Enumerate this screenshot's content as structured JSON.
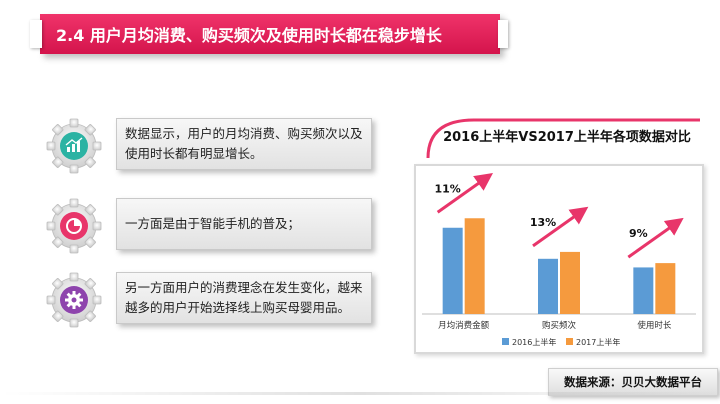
{
  "header": {
    "title": "2.4 用户月均消费、购买频次及使用时长都在稳步增长"
  },
  "points": [
    {
      "text": "数据显示，用户的月均消费、购买频次以及使用时长都有明显增长。",
      "icon": "bar-chart-icon",
      "color": "#2bb3a3"
    },
    {
      "text": "一方面是由于智能手机的普及；",
      "icon": "pie-chart-icon",
      "color": "#e8356a"
    },
    {
      "text": "另一方面用户的消费理念在发生变化，越来越多的用户开始选择线上购买母婴用品。",
      "icon": "gear-icon",
      "color": "#8e44ad"
    }
  ],
  "chart_data": {
    "type": "bar",
    "title": "2016上半年VS2017上半年各项数据对比",
    "categories": [
      "月均消费金额",
      "购买频次",
      "使用时长"
    ],
    "series": [
      {
        "name": "2016上半年",
        "values": [
          100,
          64,
          54
        ],
        "color": "#5b9bd5"
      },
      {
        "name": "2017上半年",
        "values": [
          111,
          72,
          59
        ],
        "color": "#f59a3e"
      }
    ],
    "growth_labels": [
      "11%",
      "13%",
      "9%"
    ],
    "ylim": [
      0,
      160
    ],
    "grid": false,
    "legend": "bottom",
    "arrow_color": "#e8356a"
  },
  "footer": {
    "source": "数据来源：贝贝大数据平台"
  }
}
